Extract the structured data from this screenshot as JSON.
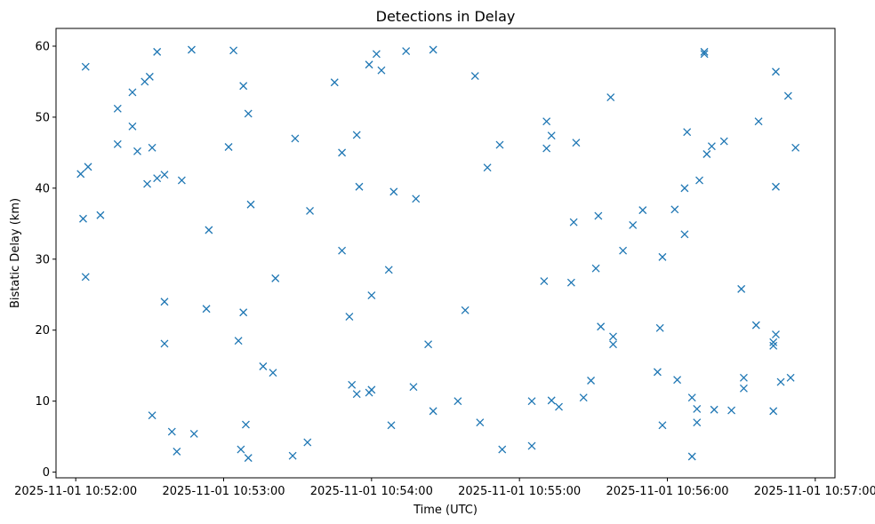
{
  "chart_data": {
    "type": "scatter",
    "title": "Detections in Delay",
    "xlabel": "Time (UTC)",
    "ylabel": "Bistatic Delay (km)",
    "marker": "x",
    "color": "#1f77b4",
    "grid": false,
    "legend": "none",
    "xlim": [
      "2025-11-01 10:51:52",
      "2025-11-01 10:57:08"
    ],
    "ylim": [
      -0.8,
      62.5
    ],
    "xticks": [
      "2025-11-01 10:52:00",
      "2025-11-01 10:53:00",
      "2025-11-01 10:54:00",
      "2025-11-01 10:55:00",
      "2025-11-01 10:56:00",
      "2025-11-01 10:57:00"
    ],
    "yticks": [
      0,
      10,
      20,
      30,
      40,
      50,
      60
    ],
    "points": [
      [
        "10:52:02",
        42.0
      ],
      [
        "10:52:03",
        35.7
      ],
      [
        "10:52:04",
        57.1
      ],
      [
        "10:52:04",
        27.5
      ],
      [
        "10:52:05",
        43.0
      ],
      [
        "10:52:10",
        36.2
      ],
      [
        "10:52:17",
        51.2
      ],
      [
        "10:52:17",
        46.2
      ],
      [
        "10:52:23",
        48.7
      ],
      [
        "10:52:23",
        53.5
      ],
      [
        "10:52:25",
        45.2
      ],
      [
        "10:52:28",
        55.0
      ],
      [
        "10:52:29",
        40.6
      ],
      [
        "10:52:30",
        55.7
      ],
      [
        "10:52:31",
        45.7
      ],
      [
        "10:52:31",
        8.0
      ],
      [
        "10:52:33",
        59.2
      ],
      [
        "10:52:33",
        41.4
      ],
      [
        "10:52:36",
        24.0
      ],
      [
        "10:52:36",
        18.1
      ],
      [
        "10:52:36",
        41.9
      ],
      [
        "10:52:39",
        5.7
      ],
      [
        "10:52:41",
        2.9
      ],
      [
        "10:52:43",
        41.1
      ],
      [
        "10:52:47",
        59.5
      ],
      [
        "10:52:48",
        5.4
      ],
      [
        "10:52:53",
        23.0
      ],
      [
        "10:52:54",
        34.1
      ],
      [
        "10:53:02",
        45.8
      ],
      [
        "10:53:04",
        59.4
      ],
      [
        "10:53:06",
        18.5
      ],
      [
        "10:53:07",
        3.2
      ],
      [
        "10:53:08",
        54.4
      ],
      [
        "10:53:08",
        22.5
      ],
      [
        "10:53:09",
        6.7
      ],
      [
        "10:53:10",
        50.5
      ],
      [
        "10:53:10",
        2.0
      ],
      [
        "10:53:11",
        37.7
      ],
      [
        "10:53:16",
        14.9
      ],
      [
        "10:53:20",
        14.0
      ],
      [
        "10:53:21",
        27.3
      ],
      [
        "10:53:28",
        2.3
      ],
      [
        "10:53:29",
        47.0
      ],
      [
        "10:53:34",
        4.2
      ],
      [
        "10:53:35",
        36.8
      ],
      [
        "10:53:45",
        54.9
      ],
      [
        "10:53:48",
        31.2
      ],
      [
        "10:53:48",
        45.0
      ],
      [
        "10:53:51",
        21.9
      ],
      [
        "10:53:52",
        12.3
      ],
      [
        "10:53:54",
        47.5
      ],
      [
        "10:53:54",
        11.0
      ],
      [
        "10:53:55",
        40.2
      ],
      [
        "10:53:59",
        11.2
      ],
      [
        "10:53:59",
        57.4
      ],
      [
        "10:54:00",
        24.9
      ],
      [
        "10:54:00",
        11.6
      ],
      [
        "10:54:02",
        58.9
      ],
      [
        "10:54:04",
        56.6
      ],
      [
        "10:54:07",
        28.5
      ],
      [
        "10:54:08",
        6.6
      ],
      [
        "10:54:09",
        39.5
      ],
      [
        "10:54:14",
        59.3
      ],
      [
        "10:54:17",
        12.0
      ],
      [
        "10:54:18",
        38.5
      ],
      [
        "10:54:23",
        18.0
      ],
      [
        "10:54:25",
        8.6
      ],
      [
        "10:54:25",
        59.5
      ],
      [
        "10:54:35",
        10.0
      ],
      [
        "10:54:38",
        22.8
      ],
      [
        "10:54:42",
        55.8
      ],
      [
        "10:54:44",
        7.0
      ],
      [
        "10:54:47",
        42.9
      ],
      [
        "10:54:52",
        46.1
      ],
      [
        "10:54:53",
        3.2
      ],
      [
        "10:55:05",
        10.0
      ],
      [
        "10:55:05",
        3.7
      ],
      [
        "10:55:10",
        26.9
      ],
      [
        "10:55:11",
        49.4
      ],
      [
        "10:55:11",
        45.6
      ],
      [
        "10:55:13",
        47.4
      ],
      [
        "10:55:13",
        10.1
      ],
      [
        "10:55:16",
        9.2
      ],
      [
        "10:55:21",
        26.7
      ],
      [
        "10:55:22",
        35.2
      ],
      [
        "10:55:23",
        46.4
      ],
      [
        "10:55:26",
        10.5
      ],
      [
        "10:55:29",
        12.9
      ],
      [
        "10:55:31",
        28.7
      ],
      [
        "10:55:32",
        36.1
      ],
      [
        "10:55:33",
        20.5
      ],
      [
        "10:55:37",
        52.8
      ],
      [
        "10:55:38",
        19.1
      ],
      [
        "10:55:38",
        18.0
      ],
      [
        "10:55:42",
        31.2
      ],
      [
        "10:55:46",
        34.8
      ],
      [
        "10:55:50",
        36.9
      ],
      [
        "10:55:56",
        14.1
      ],
      [
        "10:55:57",
        20.3
      ],
      [
        "10:55:58",
        30.3
      ],
      [
        "10:55:58",
        6.6
      ],
      [
        "10:56:03",
        37.0
      ],
      [
        "10:56:04",
        13.0
      ],
      [
        "10:56:07",
        40.0
      ],
      [
        "10:56:07",
        33.5
      ],
      [
        "10:56:08",
        47.9
      ],
      [
        "10:56:10",
        10.5
      ],
      [
        "10:56:10",
        2.2
      ],
      [
        "10:56:12",
        8.9
      ],
      [
        "10:56:12",
        7.0
      ],
      [
        "10:56:13",
        41.1
      ],
      [
        "10:56:15",
        58.9
      ],
      [
        "10:56:15",
        59.2
      ],
      [
        "10:56:16",
        44.8
      ],
      [
        "10:56:18",
        45.9
      ],
      [
        "10:56:19",
        8.8
      ],
      [
        "10:56:23",
        46.6
      ],
      [
        "10:56:26",
        8.7
      ],
      [
        "10:56:30",
        25.8
      ],
      [
        "10:56:31",
        13.3
      ],
      [
        "10:56:31",
        11.8
      ],
      [
        "10:56:36",
        20.7
      ],
      [
        "10:56:37",
        49.4
      ],
      [
        "10:56:43",
        8.6
      ],
      [
        "10:56:43",
        17.8
      ],
      [
        "10:56:43",
        18.3
      ],
      [
        "10:56:44",
        19.4
      ],
      [
        "10:56:44",
        40.2
      ],
      [
        "10:56:44",
        56.4
      ],
      [
        "10:56:46",
        12.7
      ],
      [
        "10:56:49",
        53.0
      ],
      [
        "10:56:50",
        13.3
      ],
      [
        "10:56:52",
        45.7
      ]
    ]
  }
}
